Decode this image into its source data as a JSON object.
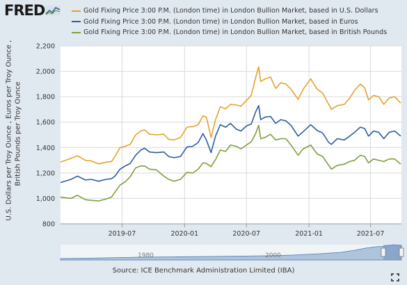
{
  "logo": {
    "text": "FRED",
    "icon": "fred-chart-logo-icon"
  },
  "legend": [
    {
      "label": "Gold Fixing Price 3:00 P.M. (London time) in London Bullion Market, based in U.S. Dollars",
      "color": "#e5a12b"
    },
    {
      "label": "Gold Fixing Price 3:00 P.M. (London time) in London Bullion Market, based in Euros",
      "color": "#2e5c9d"
    },
    {
      "label": "Gold Fixing Price 3:00 P.M. (London time) in London Bullion Market, based in British Pounds",
      "color": "#7d9f3a"
    }
  ],
  "y_axis_label_line1": "U.S. Dollars per Troy Ounce , Euros per Troy Ounce ,",
  "y_axis_label_line2": "British Pounds per Troy Ounce",
  "source": "Source: ICE Benchmark Administration Limited (IBA)",
  "navigator_labels": [
    "1980",
    "2000"
  ],
  "expand_icon": "fullscreen-expand-icon",
  "chart_data": {
    "type": "line",
    "ylim": [
      800,
      2200
    ],
    "yticks": [
      800,
      1000,
      1200,
      1400,
      1600,
      1800,
      2000,
      2200
    ],
    "ytick_labels": [
      "800",
      "1,000",
      "1,200",
      "1,400",
      "1,600",
      "1,800",
      "2,000",
      "2,200"
    ],
    "xlim": [
      "2019-01-01",
      "2021-09-30"
    ],
    "xticks": [
      "2019-07-01",
      "2020-01-01",
      "2020-07-01",
      "2021-01-01",
      "2021-07-01"
    ],
    "xtick_labels": [
      "2019-07",
      "2020-01",
      "2020-07",
      "2021-01",
      "2021-07"
    ],
    "grid": true,
    "legend_position": "top",
    "series": [
      {
        "name": "Gold Fixing Price 3:00 P.M. (London time) in London Bullion Market, based in U.S. Dollars",
        "color": "#e5a12b",
        "x": [
          "2019-01-01",
          "2019-02-01",
          "2019-02-20",
          "2019-03-15",
          "2019-04-01",
          "2019-04-23",
          "2019-05-15",
          "2019-05-31",
          "2019-06-10",
          "2019-06-25",
          "2019-07-10",
          "2019-07-25",
          "2019-08-10",
          "2019-08-25",
          "2019-09-05",
          "2019-09-20",
          "2019-10-10",
          "2019-11-01",
          "2019-11-15",
          "2019-12-01",
          "2019-12-20",
          "2020-01-08",
          "2020-01-25",
          "2020-02-10",
          "2020-02-24",
          "2020-03-05",
          "2020-03-19",
          "2020-04-01",
          "2020-04-15",
          "2020-05-01",
          "2020-05-15",
          "2020-06-01",
          "2020-06-15",
          "2020-07-01",
          "2020-07-15",
          "2020-07-28",
          "2020-08-06",
          "2020-08-12",
          "2020-08-25",
          "2020-09-10",
          "2020-09-25",
          "2020-10-10",
          "2020-10-25",
          "2020-11-09",
          "2020-11-30",
          "2020-12-15",
          "2021-01-06",
          "2021-01-25",
          "2021-02-10",
          "2021-02-28",
          "2021-03-08",
          "2021-03-25",
          "2021-04-15",
          "2021-05-01",
          "2021-05-15",
          "2021-06-01",
          "2021-06-14",
          "2021-06-25",
          "2021-07-10",
          "2021-07-25",
          "2021-08-09",
          "2021-08-25",
          "2021-09-10",
          "2021-09-28"
        ],
        "y": [
          1285,
          1315,
          1335,
          1300,
          1295,
          1272,
          1285,
          1290,
          1330,
          1400,
          1410,
          1425,
          1500,
          1530,
          1540,
          1505,
          1500,
          1505,
          1465,
          1460,
          1480,
          1560,
          1565,
          1580,
          1650,
          1640,
          1480,
          1620,
          1720,
          1705,
          1740,
          1735,
          1725,
          1770,
          1810,
          1950,
          2035,
          1920,
          1940,
          1955,
          1865,
          1910,
          1900,
          1860,
          1780,
          1860,
          1940,
          1860,
          1830,
          1740,
          1700,
          1730,
          1740,
          1790,
          1850,
          1900,
          1870,
          1775,
          1810,
          1800,
          1740,
          1790,
          1800,
          1750
        ]
      },
      {
        "name": "Gold Fixing Price 3:00 P.M. (London time) in London Bullion Market, based in Euros",
        "color": "#2e5c9d",
        "x": [
          "2019-01-01",
          "2019-02-01",
          "2019-02-20",
          "2019-03-15",
          "2019-04-01",
          "2019-04-23",
          "2019-05-15",
          "2019-05-31",
          "2019-06-10",
          "2019-06-25",
          "2019-07-10",
          "2019-07-25",
          "2019-08-10",
          "2019-08-25",
          "2019-09-05",
          "2019-09-20",
          "2019-10-10",
          "2019-11-01",
          "2019-11-15",
          "2019-12-01",
          "2019-12-20",
          "2020-01-08",
          "2020-01-25",
          "2020-02-10",
          "2020-02-24",
          "2020-03-05",
          "2020-03-19",
          "2020-04-01",
          "2020-04-15",
          "2020-05-01",
          "2020-05-15",
          "2020-06-01",
          "2020-06-15",
          "2020-07-01",
          "2020-07-15",
          "2020-07-28",
          "2020-08-06",
          "2020-08-12",
          "2020-08-25",
          "2020-09-10",
          "2020-09-25",
          "2020-10-10",
          "2020-10-25",
          "2020-11-09",
          "2020-11-30",
          "2020-12-15",
          "2021-01-06",
          "2021-01-25",
          "2021-02-10",
          "2021-02-28",
          "2021-03-08",
          "2021-03-25",
          "2021-04-15",
          "2021-05-01",
          "2021-05-15",
          "2021-06-01",
          "2021-06-14",
          "2021-06-25",
          "2021-07-10",
          "2021-07-25",
          "2021-08-09",
          "2021-08-25",
          "2021-09-10",
          "2021-09-28"
        ],
        "y": [
          1125,
          1150,
          1175,
          1145,
          1150,
          1135,
          1150,
          1155,
          1175,
          1230,
          1255,
          1275,
          1340,
          1380,
          1395,
          1365,
          1360,
          1365,
          1330,
          1320,
          1330,
          1405,
          1410,
          1440,
          1510,
          1460,
          1360,
          1490,
          1580,
          1560,
          1590,
          1545,
          1530,
          1570,
          1585,
          1680,
          1730,
          1620,
          1640,
          1645,
          1590,
          1620,
          1610,
          1575,
          1490,
          1525,
          1580,
          1535,
          1515,
          1440,
          1425,
          1470,
          1460,
          1490,
          1520,
          1560,
          1550,
          1490,
          1530,
          1520,
          1470,
          1520,
          1530,
          1490
        ]
      },
      {
        "name": "Gold Fixing Price 3:00 P.M. (London time) in London Bullion Market, based in British Pounds",
        "color": "#7d9f3a",
        "x": [
          "2019-01-01",
          "2019-02-01",
          "2019-02-20",
          "2019-03-15",
          "2019-04-01",
          "2019-04-23",
          "2019-05-15",
          "2019-05-31",
          "2019-06-10",
          "2019-06-25",
          "2019-07-10",
          "2019-07-25",
          "2019-08-10",
          "2019-08-25",
          "2019-09-05",
          "2019-09-20",
          "2019-10-10",
          "2019-11-01",
          "2019-11-15",
          "2019-12-01",
          "2019-12-20",
          "2020-01-08",
          "2020-01-25",
          "2020-02-10",
          "2020-02-24",
          "2020-03-05",
          "2020-03-19",
          "2020-04-01",
          "2020-04-15",
          "2020-05-01",
          "2020-05-15",
          "2020-06-01",
          "2020-06-15",
          "2020-07-01",
          "2020-07-15",
          "2020-07-28",
          "2020-08-06",
          "2020-08-12",
          "2020-08-25",
          "2020-09-10",
          "2020-09-25",
          "2020-10-10",
          "2020-10-25",
          "2020-11-09",
          "2020-11-30",
          "2020-12-15",
          "2021-01-06",
          "2021-01-25",
          "2021-02-10",
          "2021-02-28",
          "2021-03-08",
          "2021-03-25",
          "2021-04-15",
          "2021-05-01",
          "2021-05-15",
          "2021-06-01",
          "2021-06-14",
          "2021-06-25",
          "2021-07-10",
          "2021-07-25",
          "2021-08-09",
          "2021-08-25",
          "2021-09-10",
          "2021-09-28"
        ],
        "y": [
          1010,
          1000,
          1025,
          990,
          985,
          980,
          995,
          1010,
          1050,
          1105,
          1130,
          1170,
          1240,
          1255,
          1255,
          1230,
          1225,
          1175,
          1150,
          1135,
          1150,
          1205,
          1200,
          1230,
          1280,
          1275,
          1250,
          1305,
          1380,
          1370,
          1420,
          1410,
          1390,
          1420,
          1445,
          1510,
          1575,
          1470,
          1480,
          1505,
          1460,
          1470,
          1470,
          1420,
          1340,
          1390,
          1420,
          1350,
          1330,
          1260,
          1230,
          1260,
          1270,
          1290,
          1300,
          1340,
          1330,
          1280,
          1310,
          1300,
          1290,
          1310,
          1310,
          1270
        ]
      }
    ]
  }
}
